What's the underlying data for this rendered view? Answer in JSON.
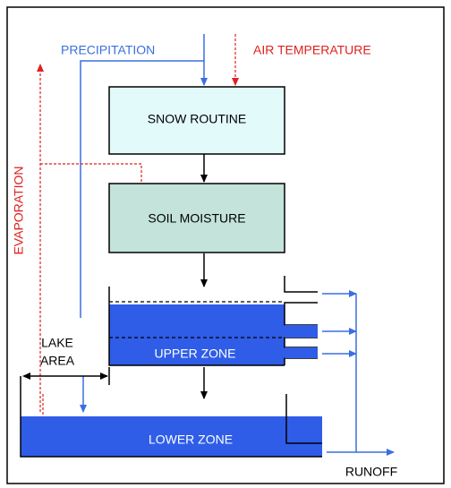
{
  "labels": {
    "precipitation": "PRECIPITATION",
    "air_temperature": "AIR TEMPERATURE",
    "evaporation": "EVAPORATION",
    "snow_routine": "SNOW ROUTINE",
    "soil_moisture": "SOIL MOISTURE",
    "lake_area": [
      "LAKE",
      "AREA"
    ],
    "upper_zone": "UPPER ZONE",
    "lower_zone": "LOWER ZONE",
    "runoff": "RUNOFF"
  }
}
